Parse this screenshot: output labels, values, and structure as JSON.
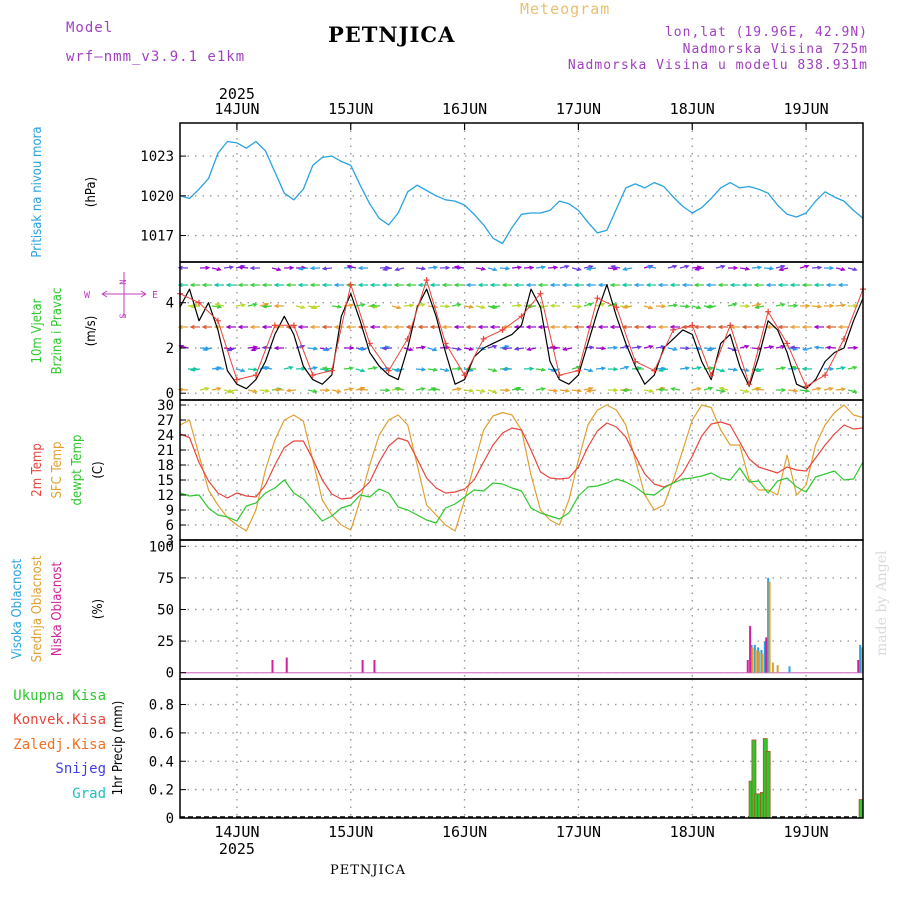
{
  "header": {
    "model_label": "Model",
    "model_name": "wrf—nmm_v3.9.1 e1km",
    "location_title": "PETNJICA",
    "product_title": "Meteogram",
    "coords": "lon,lat (19.96E, 42.9N)",
    "elevation": "Nadmorska Visina 725m",
    "model_elevation": "Nadmorska Visina u modelu 838.931m",
    "footer_title": "PETNJICA",
    "credit": "made by Angel"
  },
  "colors": {
    "pressure": "#29a3e0",
    "temp2m": "#e8453c",
    "sfc_temp": "#e0a030",
    "dewpoint": "#2ec82e",
    "wind_speed": "#000000",
    "wind_gust_marker": "#e8453c",
    "cloud_high": "#29a3e0",
    "cloud_mid": "#e0a030",
    "cloud_low": "#d0209a",
    "precip_total": "#2ec82e",
    "precip_conv": "#e8453c",
    "precip_frz": "#f07020",
    "precip_snow": "#4040e0",
    "precip_graupel": "#20c0c0",
    "header_purple": "#a040c0",
    "header_gold": "#e8c070"
  },
  "time_axis": {
    "year": "2025",
    "days": [
      "14JUN",
      "15JUN",
      "16JUN",
      "17JUN",
      "18JUN",
      "19JUN"
    ]
  },
  "panels": {
    "pressure": {
      "label": "Pritisak na nivou mora",
      "unit": "(hPa)"
    },
    "wind": {
      "label_line1": "10m Vjetar",
      "label_line2": "Brzina i Pravac",
      "unit": "(m/s)",
      "compass_w": "W",
      "compass_e": "E",
      "compass_n": "N",
      "compass_s": "S"
    },
    "temp": {
      "label_2m": "2m Temp",
      "label_sfc": "SFC Temp",
      "label_dew": "dewpt Temp",
      "unit": "(C)"
    },
    "cloud": {
      "label_high": "Visoka Oblacnost",
      "label_mid": "Srednja Oblacnost",
      "label_low": "Niska Oblacnost",
      "unit": "(%)"
    },
    "precip": {
      "label_total": "Ukupna Kisa",
      "label_conv": "Konvek.Kisa",
      "label_frz": "Zaledj.Kisa",
      "label_snow": "Snijeg",
      "label_graupel": "Grad",
      "unit": "1hr Precip (mm)"
    }
  },
  "chart_data": [
    {
      "type": "line",
      "name": "pressure",
      "x_unit": "hours from 2025-06-13 12:00 UTC",
      "ylim": [
        1015,
        1025.5
      ],
      "yticks": [
        1017,
        1020,
        1023
      ],
      "series": [
        {
          "name": "Pritisak na nivou mora",
          "x": [
            0,
            2,
            4,
            6,
            8,
            10,
            12,
            14,
            16,
            18,
            20,
            22,
            24,
            26,
            28,
            30,
            32,
            34,
            36,
            38,
            40,
            42,
            44,
            46,
            48,
            50,
            52,
            54,
            56,
            58,
            60,
            62,
            64,
            66,
            68,
            70,
            72,
            74,
            76,
            78,
            80,
            82,
            84,
            86,
            88,
            90,
            92,
            94,
            96,
            98,
            100,
            102,
            104,
            106,
            108,
            110,
            112,
            114,
            116,
            118,
            120,
            122,
            124,
            126,
            128,
            130,
            132,
            134,
            136,
            138,
            140,
            142,
            144
          ],
          "values": [
            1020.0,
            1019.8,
            1020.5,
            1021.3,
            1023.2,
            1024.1,
            1024.0,
            1023.6,
            1024.1,
            1023.4,
            1021.8,
            1020.2,
            1019.7,
            1020.5,
            1022.3,
            1022.9,
            1023.0,
            1022.6,
            1022.3,
            1020.8,
            1019.4,
            1018.3,
            1017.8,
            1018.7,
            1020.3,
            1020.8,
            1020.4,
            1020.0,
            1019.7,
            1019.6,
            1019.3,
            1018.6,
            1017.8,
            1016.8,
            1016.4,
            1017.6,
            1018.6,
            1018.7,
            1018.7,
            1018.9,
            1019.6,
            1019.4,
            1018.9,
            1018.0,
            1017.2,
            1017.4,
            1019.0,
            1020.6,
            1020.9,
            1020.6,
            1021.0,
            1020.7,
            1019.9,
            1019.2,
            1018.7,
            1019.1,
            1019.8,
            1020.6,
            1021.0,
            1020.6,
            1020.7,
            1020.5,
            1020.2,
            1019.3,
            1018.6,
            1018.4,
            1018.7,
            1019.6,
            1020.3,
            1019.9,
            1019.6,
            1018.9,
            1018.3
          ]
        }
      ]
    },
    {
      "type": "line",
      "name": "wind",
      "x_unit": "hours from 2025-06-13 12:00 UTC",
      "ylim": [
        -0.3,
        5.8
      ],
      "yticks": [
        0,
        2,
        4
      ],
      "series": [
        {
          "name": "10m wind speed",
          "x": [
            0,
            2,
            4,
            6,
            8,
            10,
            12,
            14,
            16,
            18,
            20,
            22,
            24,
            26,
            28,
            30,
            32,
            34,
            36,
            38,
            40,
            42,
            44,
            46,
            48,
            50,
            52,
            54,
            56,
            58,
            60,
            62,
            64,
            66,
            68,
            70,
            72,
            74,
            76,
            78,
            80,
            82,
            84,
            86,
            88,
            90,
            92,
            94,
            96,
            98,
            100,
            102,
            104,
            106,
            108,
            110,
            112,
            114,
            116,
            118,
            120,
            122,
            124,
            126,
            128,
            130,
            132,
            134,
            136,
            138,
            140,
            142,
            144
          ],
          "values": [
            3.8,
            4.6,
            3.2,
            4.0,
            2.8,
            1.0,
            0.4,
            0.2,
            0.6,
            1.4,
            2.6,
            3.4,
            2.6,
            1.2,
            0.6,
            0.4,
            0.8,
            3.4,
            4.4,
            3.2,
            1.8,
            1.2,
            0.8,
            0.6,
            2.0,
            3.8,
            4.6,
            3.4,
            1.8,
            0.4,
            0.6,
            1.6,
            2.0,
            2.2,
            2.4,
            2.6,
            3.0,
            4.6,
            3.8,
            1.4,
            0.6,
            0.4,
            0.8,
            2.2,
            3.6,
            4.8,
            3.4,
            2.2,
            1.2,
            0.4,
            0.8,
            2.0,
            2.4,
            2.8,
            2.6,
            1.4,
            0.6,
            2.2,
            2.6,
            1.2,
            0.3,
            1.6,
            3.2,
            2.8,
            1.8,
            0.4,
            0.2,
            0.6,
            1.4,
            1.8,
            2.0,
            3.2,
            4.2
          ]
        },
        {
          "name": "10m wind gust",
          "x": [
            0,
            4,
            8,
            12,
            16,
            20,
            24,
            28,
            32,
            36,
            40,
            44,
            48,
            52,
            56,
            60,
            64,
            68,
            72,
            76,
            80,
            84,
            88,
            92,
            96,
            100,
            104,
            108,
            112,
            116,
            120,
            124,
            128,
            132,
            136,
            140,
            144
          ],
          "values": [
            4.4,
            4.0,
            3.2,
            0.6,
            0.8,
            3.0,
            3.0,
            0.8,
            1.0,
            4.8,
            2.2,
            1.0,
            2.4,
            5.0,
            2.2,
            0.8,
            2.4,
            2.8,
            3.4,
            4.4,
            0.8,
            1.0,
            4.2,
            3.8,
            1.4,
            1.0,
            2.8,
            3.0,
            0.8,
            3.0,
            0.4,
            3.6,
            2.2,
            0.3,
            0.8,
            2.4,
            4.6
          ]
        }
      ]
    },
    {
      "type": "line",
      "name": "temperature",
      "x_unit": "hours from 2025-06-13 12:00 UTC",
      "ylim": [
        3,
        31
      ],
      "yticks": [
        3,
        6,
        9,
        12,
        15,
        18,
        21,
        24,
        27,
        30
      ],
      "series": [
        {
          "name": "2m Temp",
          "x": [
            0,
            2,
            4,
            6,
            8,
            10,
            12,
            14,
            16,
            18,
            20,
            22,
            24,
            26,
            28,
            30,
            32,
            34,
            36,
            38,
            40,
            42,
            44,
            46,
            48,
            50,
            52,
            54,
            56,
            58,
            60,
            62,
            64,
            66,
            68,
            70,
            72,
            74,
            76,
            78,
            80,
            82,
            84,
            86,
            88,
            90,
            92,
            94,
            96,
            98,
            100,
            102,
            104,
            106,
            108,
            110,
            112,
            114,
            116,
            118,
            120,
            122,
            124,
            126,
            128,
            130,
            132,
            134,
            136,
            138,
            140,
            142,
            144
          ],
          "values": [
            24.2,
            23.5,
            18.5,
            14.8,
            12.4,
            11.4,
            12.4,
            11.8,
            11.6,
            14.0,
            18.0,
            21.5,
            22.8,
            22.8,
            19.2,
            15.0,
            12.2,
            11.2,
            11.4,
            12.8,
            14.6,
            18.6,
            21.8,
            23.4,
            22.8,
            19.2,
            15.4,
            13.4,
            12.4,
            12.6,
            13.2,
            15.0,
            18.6,
            22.0,
            24.4,
            25.4,
            25.0,
            21.0,
            16.6,
            15.4,
            15.2,
            15.4,
            17.6,
            21.6,
            24.8,
            26.4,
            25.6,
            23.6,
            19.8,
            16.2,
            14.2,
            13.6,
            14.4,
            16.4,
            19.8,
            23.8,
            26.2,
            26.6,
            26.0,
            22.6,
            19.2,
            17.6,
            17.0,
            16.4,
            17.6,
            17.0,
            16.8,
            19.4,
            22.0,
            24.2,
            26.0,
            25.2,
            25.4
          ]
        },
        {
          "name": "SFC Temp",
          "x": [
            0,
            2,
            4,
            6,
            8,
            10,
            12,
            14,
            16,
            18,
            20,
            22,
            24,
            26,
            28,
            30,
            32,
            34,
            36,
            38,
            40,
            42,
            44,
            46,
            48,
            50,
            52,
            54,
            56,
            58,
            60,
            62,
            64,
            66,
            68,
            70,
            72,
            74,
            76,
            78,
            80,
            82,
            84,
            86,
            88,
            90,
            92,
            94,
            96,
            98,
            100,
            102,
            104,
            106,
            108,
            110,
            112,
            114,
            116,
            118,
            120,
            122,
            124,
            126,
            128,
            130,
            132,
            134,
            136,
            138,
            140,
            142,
            144
          ],
          "values": [
            26.0,
            27.0,
            20.0,
            13.0,
            10.0,
            7.5,
            6.0,
            4.8,
            9.0,
            17.0,
            23.0,
            27.0,
            28.0,
            26.8,
            19.0,
            11.0,
            8.0,
            6.0,
            5.0,
            11.0,
            18.0,
            24.0,
            27.0,
            28.0,
            26.0,
            18.0,
            10.0,
            8.0,
            6.0,
            4.8,
            11.0,
            18.0,
            25.0,
            27.8,
            28.5,
            28.0,
            25.0,
            16.0,
            9.0,
            7.0,
            6.0,
            11.0,
            19.0,
            26.0,
            29.0,
            30.0,
            29.0,
            26.0,
            19.0,
            12.0,
            9.0,
            10.0,
            15.0,
            21.0,
            27.0,
            30.0,
            29.5,
            25.0,
            22.0,
            22.0,
            15.0,
            13.0,
            13.0,
            12.0,
            20.0,
            12.0,
            14.0,
            22.0,
            26.0,
            28.5,
            30.0,
            28.0,
            27.5
          ]
        },
        {
          "name": "dewpt Temp",
          "x": [
            0,
            2,
            4,
            6,
            8,
            10,
            12,
            14,
            16,
            18,
            20,
            22,
            24,
            26,
            28,
            30,
            32,
            34,
            36,
            38,
            40,
            42,
            44,
            46,
            48,
            50,
            52,
            54,
            56,
            58,
            60,
            62,
            64,
            66,
            68,
            70,
            72,
            74,
            76,
            78,
            80,
            82,
            84,
            86,
            88,
            90,
            92,
            94,
            96,
            98,
            100,
            102,
            104,
            106,
            108,
            110,
            112,
            114,
            116,
            118,
            120,
            122,
            124,
            126,
            128,
            130,
            132,
            134,
            136,
            138,
            140,
            142,
            144
          ],
          "values": [
            12.4,
            11.8,
            12.0,
            9.4,
            8.0,
            7.6,
            6.8,
            9.8,
            10.4,
            12.4,
            13.4,
            15.0,
            12.4,
            11.2,
            9.0,
            6.8,
            7.8,
            9.4,
            10.0,
            12.0,
            11.6,
            13.2,
            12.4,
            9.6,
            9.0,
            8.0,
            7.0,
            6.4,
            9.4,
            10.2,
            11.6,
            13.0,
            12.8,
            14.4,
            14.2,
            13.4,
            12.8,
            9.4,
            8.4,
            7.8,
            7.2,
            8.4,
            11.8,
            13.6,
            13.8,
            14.4,
            15.2,
            14.6,
            13.6,
            12.2,
            12.0,
            13.4,
            14.4,
            15.2,
            15.4,
            15.8,
            16.4,
            15.4,
            15.0,
            17.4,
            14.6,
            14.8,
            12.4,
            14.8,
            15.4,
            13.6,
            12.6,
            15.6,
            16.2,
            16.8,
            15.0,
            15.2,
            18.6
          ]
        }
      ]
    },
    {
      "type": "bar",
      "name": "cloud_cover",
      "x_unit": "hours from 2025-06-13 12:00 UTC",
      "ylim": [
        -5,
        105
      ],
      "yticks": [
        0,
        25,
        50,
        75,
        100
      ],
      "series": [
        {
          "name": "Visoka Oblacnost",
          "x": [
            120.5,
            121.2,
            121.9,
            122.6,
            123.3,
            124.0,
            128.5,
            143.4
          ],
          "values": [
            22,
            22,
            20,
            18,
            25,
            75,
            5,
            22
          ]
        },
        {
          "name": "Srednja Oblacnost",
          "x": [
            120.7,
            121.4,
            122.1,
            122.8,
            124.3,
            125.0,
            126.0,
            143.8
          ],
          "values": [
            20,
            18,
            17,
            15,
            72,
            8,
            6,
            20
          ]
        },
        {
          "name": "Niska Oblacnost",
          "x": [
            19.5,
            22.5,
            38.5,
            41.0,
            119.7,
            120.2,
            123.6,
            143.0
          ],
          "values": [
            10,
            12,
            10,
            10,
            10,
            37,
            28,
            10
          ]
        }
      ]
    },
    {
      "type": "bar",
      "name": "precipitation",
      "x_unit": "hours from 2025-06-13 12:00 UTC",
      "ylim": [
        0,
        0.98
      ],
      "yticks": [
        0,
        0.2,
        0.4,
        0.6,
        0.8
      ],
      "series": [
        {
          "name": "Ukupna Kisa",
          "x": [
            120.4,
            121.0,
            121.6,
            122.2,
            122.8,
            123.4,
            124.0,
            143.6
          ],
          "values": [
            0.26,
            0.55,
            0.17,
            0.17,
            0.18,
            0.56,
            0.47,
            0.13
          ]
        },
        {
          "name": "Konvek.Kisa",
          "x": [],
          "values": []
        },
        {
          "name": "Zaledj.Kisa",
          "x": [],
          "values": []
        },
        {
          "name": "Snijeg",
          "x": [],
          "values": []
        },
        {
          "name": "Grad",
          "x": [],
          "values": []
        }
      ]
    }
  ]
}
